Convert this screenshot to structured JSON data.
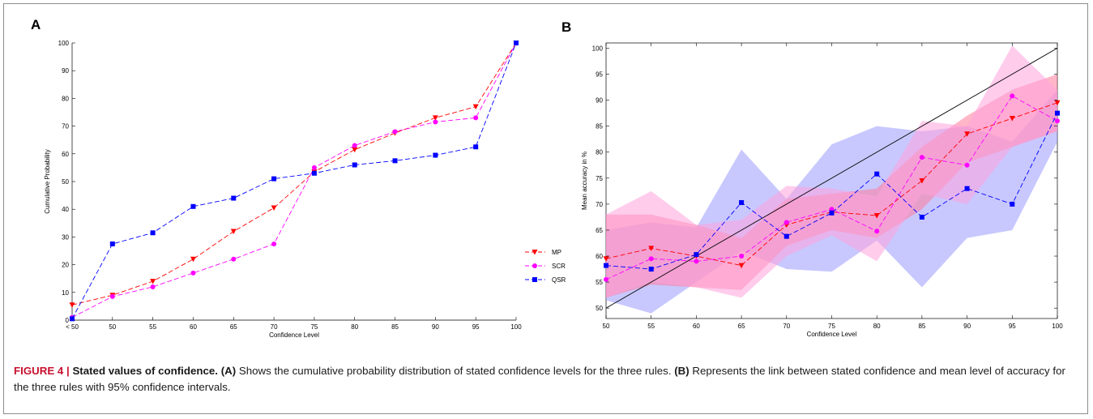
{
  "caption": {
    "figure_label": "FIGURE 4 | ",
    "title": "Stated values of confidence.",
    "part_a_label": "(A)",
    "part_a_text": "Shows the cumulative probability distribution of stated confidence levels for the three rules.",
    "part_b_label": "(B)",
    "part_b_text": "Represents the link between stated confidence and mean level of accuracy for the three rules with 95% confidence intervals."
  },
  "colors": {
    "MP": "#ff0000",
    "SCR": "#ff00ff",
    "QSR": "#0000ff",
    "MP_band": "#ff7b9a",
    "SCR_band": "#ffa3dc",
    "QSR_band": "#9a9aff"
  },
  "chart_data": [
    {
      "panel": "A",
      "type": "line",
      "xlabel": "Confidence Level",
      "ylabel": "Cumulative Probability",
      "categories": [
        "< 50",
        "50",
        "55",
        "60",
        "65",
        "70",
        "75",
        "80",
        "85",
        "90",
        "95",
        "100"
      ],
      "ylim": [
        0,
        100
      ],
      "yticks": [
        0,
        10,
        20,
        30,
        40,
        50,
        60,
        70,
        80,
        90,
        100
      ],
      "grid": false,
      "legend_position": "right",
      "series": [
        {
          "name": "MP",
          "marker": "triangle-down",
          "values": [
            5.5,
            9,
            14,
            22,
            32,
            40.5,
            53.5,
            61.5,
            67.5,
            73,
            77,
            100
          ]
        },
        {
          "name": "SCR",
          "marker": "circle",
          "values": [
            1,
            8.5,
            12,
            17,
            22,
            27.5,
            55,
            63,
            68,
            71.5,
            73,
            100
          ]
        },
        {
          "name": "QSR",
          "marker": "square",
          "values": [
            0.5,
            27.5,
            31.5,
            41,
            44,
            51,
            53,
            56,
            57.5,
            59.5,
            62.5,
            100
          ]
        }
      ]
    },
    {
      "panel": "B",
      "type": "line",
      "xlabel": "Confidence Level",
      "ylabel": "Mean accuracy in %",
      "x": [
        50,
        55,
        60,
        65,
        70,
        75,
        80,
        85,
        90,
        95,
        100
      ],
      "xlim": [
        50,
        100
      ],
      "ylim": [
        48,
        101
      ],
      "yticks": [
        50,
        55,
        60,
        65,
        70,
        75,
        80,
        85,
        90,
        95,
        100
      ],
      "grid": false,
      "reference_line": [
        [
          50,
          50
        ],
        [
          100,
          100
        ]
      ],
      "series": [
        {
          "name": "MP",
          "marker": "triangle-down",
          "values": [
            59.5,
            61.5,
            60,
            58.2,
            66,
            68.5,
            67.8,
            74.5,
            83.5,
            86.5,
            89.5
          ],
          "ci_lower": [
            52,
            54.5,
            54,
            53.5,
            62,
            65,
            63.5,
            69,
            78,
            81,
            84
          ],
          "ci_upper": [
            68,
            68,
            66,
            63.5,
            71,
            72,
            73,
            81,
            87,
            92,
            95
          ]
        },
        {
          "name": "SCR",
          "marker": "circle",
          "values": [
            55.5,
            59.5,
            59,
            60,
            66.5,
            69,
            64.8,
            79,
            77.5,
            90.8,
            86
          ],
          "ci_lower": [
            52,
            55,
            54,
            52,
            60,
            64,
            59,
            72,
            70,
            81,
            84
          ],
          "ci_upper": [
            68,
            72.5,
            66,
            67,
            73.5,
            73,
            71.5,
            86,
            85,
            100.5,
            92
          ]
        },
        {
          "name": "QSR",
          "marker": "square",
          "values": [
            58.2,
            57.5,
            60.3,
            70.3,
            63.8,
            68.3,
            75.8,
            67.5,
            73,
            70,
            87.5
          ],
          "ci_lower": [
            51.5,
            49,
            55,
            61,
            57.5,
            57,
            63,
            54,
            63.5,
            65,
            82
          ]
        },
        {
          "ci_upper": [
            65,
            66.5,
            65.5,
            80.5,
            71,
            81.5,
            85,
            84,
            85,
            82,
            92
          ]
        }
      ]
    }
  ],
  "panels": {
    "a_letter": "A",
    "b_letter": "B"
  }
}
